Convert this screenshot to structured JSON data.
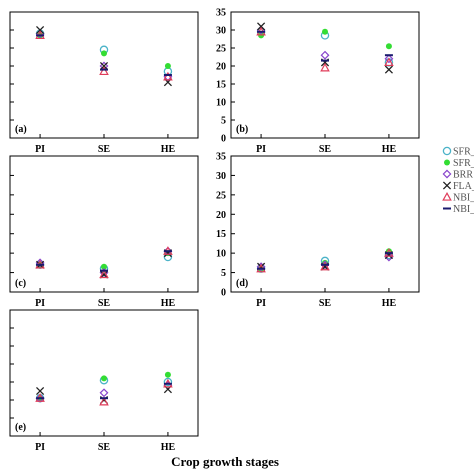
{
  "figure": {
    "xlabel": "Crop growth stages"
  },
  "legend": {
    "placement": "right",
    "entries": [
      {
        "label": "SFR_",
        "marker": "circle-open",
        "color": "#4bb3c8"
      },
      {
        "label": "SFR_",
        "marker": "circle-filled",
        "color": "#33dd33"
      },
      {
        "label": "BRR",
        "marker": "diamond-open",
        "color": "#8844cc"
      },
      {
        "label": "FLA_",
        "marker": "x",
        "color": "#222222"
      },
      {
        "label": "NBI_",
        "marker": "triangle-open",
        "color": "#e03c5a"
      },
      {
        "label": "NBI_",
        "marker": "dash",
        "color": "#1a1a6e"
      }
    ]
  },
  "chart_data": [
    {
      "type": "scatter",
      "panel_label": "(a)",
      "categories": [
        "PI",
        "SE",
        "HE"
      ],
      "ylim": [
        0,
        35
      ],
      "yticks": [],
      "grid": false,
      "series": [
        {
          "marker": "circle-open",
          "color": "#4bb3c8",
          "values": [
            29,
            24.5,
            18.5
          ]
        },
        {
          "marker": "circle-filled",
          "color": "#33dd33",
          "values": [
            28.5,
            23.5,
            20
          ]
        },
        {
          "marker": "diamond-open",
          "color": "#8844cc",
          "values": [
            29,
            20,
            17
          ]
        },
        {
          "marker": "x",
          "color": "#222222",
          "values": [
            30,
            20,
            15.5
          ]
        },
        {
          "marker": "triangle-open",
          "color": "#e03c5a",
          "values": [
            28.5,
            18.5,
            17
          ]
        },
        {
          "marker": "dash",
          "color": "#1a1a6e",
          "values": [
            28.5,
            19,
            17.5
          ]
        }
      ]
    },
    {
      "type": "scatter",
      "panel_label": "(b)",
      "categories": [
        "PI",
        "SE",
        "HE"
      ],
      "ylim": [
        0,
        35
      ],
      "yticks": [
        0,
        5,
        10,
        15,
        20,
        25,
        30,
        35
      ],
      "grid": false,
      "series": [
        {
          "marker": "circle-open",
          "color": "#4bb3c8",
          "values": [
            29.5,
            28.5,
            21
          ]
        },
        {
          "marker": "circle-filled",
          "color": "#33dd33",
          "values": [
            28.5,
            29.5,
            25.5
          ]
        },
        {
          "marker": "diamond-open",
          "color": "#8844cc",
          "values": [
            30,
            23,
            22
          ]
        },
        {
          "marker": "x",
          "color": "#222222",
          "values": [
            31,
            21,
            19
          ]
        },
        {
          "marker": "triangle-open",
          "color": "#e03c5a",
          "values": [
            29.5,
            19.5,
            21
          ]
        },
        {
          "marker": "dash",
          "color": "#1a1a6e",
          "values": [
            29.5,
            21.5,
            23
          ]
        }
      ]
    },
    {
      "type": "scatter",
      "panel_label": "(c)",
      "categories": [
        "PI",
        "SE",
        "HE"
      ],
      "ylim": [
        0,
        35
      ],
      "yticks": [],
      "grid": false,
      "series": [
        {
          "marker": "circle-open",
          "color": "#4bb3c8",
          "values": [
            7,
            6,
            9
          ]
        },
        {
          "marker": "circle-filled",
          "color": "#33dd33",
          "values": [
            7,
            6.5,
            10
          ]
        },
        {
          "marker": "diamond-open",
          "color": "#8844cc",
          "values": [
            7.5,
            5,
            10.5
          ]
        },
        {
          "marker": "x",
          "color": "#222222",
          "values": [
            7,
            4.5,
            10
          ]
        },
        {
          "marker": "triangle-open",
          "color": "#e03c5a",
          "values": [
            7,
            4.5,
            10.5
          ]
        },
        {
          "marker": "dash",
          "color": "#1a1a6e",
          "values": [
            7,
            5.5,
            10.5
          ]
        }
      ]
    },
    {
      "type": "scatter",
      "panel_label": "(d)",
      "categories": [
        "PI",
        "SE",
        "HE"
      ],
      "ylim": [
        0,
        35
      ],
      "yticks": [
        0,
        5,
        10,
        15,
        20,
        25,
        30,
        35
      ],
      "grid": false,
      "series": [
        {
          "marker": "circle-open",
          "color": "#4bb3c8",
          "values": [
            6,
            8,
            9.5
          ]
        },
        {
          "marker": "circle-filled",
          "color": "#33dd33",
          "values": [
            6,
            7.5,
            10.5
          ]
        },
        {
          "marker": "diamond-open",
          "color": "#8844cc",
          "values": [
            6.5,
            7,
            9
          ]
        },
        {
          "marker": "x",
          "color": "#222222",
          "values": [
            6.5,
            6.5,
            9.5
          ]
        },
        {
          "marker": "triangle-open",
          "color": "#e03c5a",
          "values": [
            6,
            6.5,
            10
          ]
        },
        {
          "marker": "dash",
          "color": "#1a1a6e",
          "values": [
            6,
            7,
            10
          ]
        }
      ]
    },
    {
      "type": "scatter",
      "panel_label": "(e)",
      "categories": [
        "PI",
        "SE",
        "HE"
      ],
      "ylim": [
        0,
        35
      ],
      "yticks": [],
      "grid": false,
      "series": [
        {
          "marker": "circle-open",
          "color": "#4bb3c8",
          "values": [
            10.5,
            15.5,
            15
          ]
        },
        {
          "marker": "circle-filled",
          "color": "#33dd33",
          "values": [
            10.5,
            16,
            17
          ]
        },
        {
          "marker": "diamond-open",
          "color": "#8844cc",
          "values": [
            10.5,
            12,
            14
          ]
        },
        {
          "marker": "x",
          "color": "#222222",
          "values": [
            12.5,
            10,
            13
          ]
        },
        {
          "marker": "triangle-open",
          "color": "#e03c5a",
          "values": [
            10.5,
            9.5,
            14.5
          ]
        },
        {
          "marker": "dash",
          "color": "#1a1a6e",
          "values": [
            10.5,
            10.5,
            14.5
          ]
        }
      ]
    }
  ]
}
